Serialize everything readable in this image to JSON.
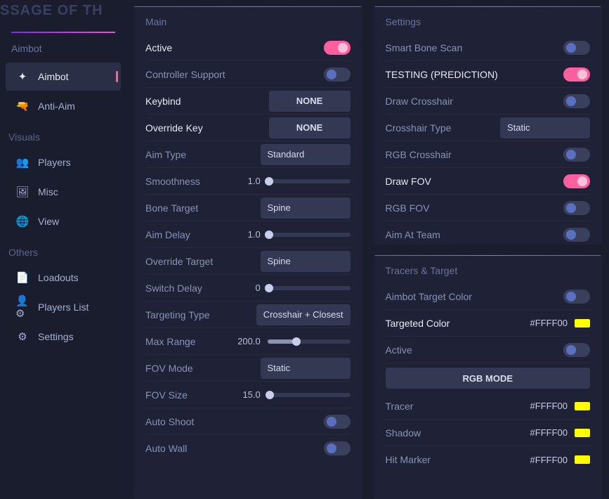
{
  "header": {
    "titleFragment": "SSAGE OF TH"
  },
  "sidebar": {
    "groups": [
      {
        "title": "Aimbot",
        "items": [
          {
            "id": "aimbot",
            "label": "Aimbot",
            "iconGlyph": "✦",
            "active": true
          },
          {
            "id": "anti-aim",
            "label": "Anti-Aim",
            "iconGlyph": "🔫",
            "active": false
          }
        ]
      },
      {
        "title": "Visuals",
        "items": [
          {
            "id": "players",
            "label": "Players",
            "iconGlyph": "👥",
            "active": false
          },
          {
            "id": "misc",
            "label": "Misc",
            "iconGlyph": "🖼",
            "active": false
          },
          {
            "id": "view",
            "label": "View",
            "iconGlyph": "🌐",
            "active": false
          }
        ]
      },
      {
        "title": "Others",
        "items": [
          {
            "id": "loadouts",
            "label": "Loadouts",
            "iconGlyph": "📄",
            "active": false
          },
          {
            "id": "players-list",
            "label": "Players List",
            "iconGlyph": "👤⚙",
            "active": false
          },
          {
            "id": "settings",
            "label": "Settings",
            "iconGlyph": "⚙",
            "active": false
          }
        ]
      }
    ]
  },
  "panels": {
    "main": {
      "title": "Main",
      "rows": [
        {
          "type": "toggle",
          "label": "Active",
          "bright": true,
          "on": true
        },
        {
          "type": "toggle",
          "label": "Controller Support",
          "on": false,
          "blue": true
        },
        {
          "type": "keybind",
          "label": "Keybind",
          "bright": true,
          "value": "NONE"
        },
        {
          "type": "keybind",
          "label": "Override Key",
          "bright": true,
          "value": "NONE"
        },
        {
          "type": "dropdown",
          "label": "Aim Type",
          "value": "Standard"
        },
        {
          "type": "slider",
          "label": "Smoothness",
          "value": "1.0",
          "pct": 2
        },
        {
          "type": "dropdown",
          "label": "Bone Target",
          "value": "Spine"
        },
        {
          "type": "slider",
          "label": "Aim Delay",
          "value": "1.0",
          "pct": 2
        },
        {
          "type": "dropdown",
          "label": "Override Target",
          "value": "Spine"
        },
        {
          "type": "slider",
          "label": "Switch Delay",
          "value": "0",
          "pct": 2
        },
        {
          "type": "dropdown",
          "label": "Targeting Type",
          "value": "Crosshair + Closest"
        },
        {
          "type": "slider",
          "label": "Max Range",
          "value": "200.0",
          "pct": 35
        },
        {
          "type": "dropdown",
          "label": "FOV Mode",
          "value": "Static"
        },
        {
          "type": "slider",
          "label": "FOV Size",
          "value": "15.0",
          "pct": 3
        },
        {
          "type": "toggle",
          "label": "Auto Shoot",
          "on": false,
          "blue": true
        },
        {
          "type": "toggle",
          "label": "Auto Wall",
          "on": false,
          "blue": true
        }
      ]
    },
    "settings": {
      "title": "Settings",
      "rows": [
        {
          "type": "toggle",
          "label": "Smart Bone Scan",
          "on": false,
          "blue": true
        },
        {
          "type": "toggle",
          "label": "TESTING (PREDICTION)",
          "bright": true,
          "on": true
        },
        {
          "type": "toggle",
          "label": "Draw Crosshair",
          "on": false,
          "blue": true
        },
        {
          "type": "dropdown",
          "label": "Crosshair Type",
          "value": "Static"
        },
        {
          "type": "toggle",
          "label": "RGB Crosshair",
          "on": false,
          "blue": true
        },
        {
          "type": "toggle",
          "label": "Draw FOV",
          "bright": true,
          "on": true
        },
        {
          "type": "toggle",
          "label": "RGB FOV",
          "on": false,
          "blue": true
        },
        {
          "type": "toggle",
          "label": "Aim At Team",
          "on": false,
          "blue": true
        }
      ]
    },
    "tracers": {
      "title": "Tracers & Target",
      "rows": [
        {
          "type": "toggle",
          "label": "Aimbot Target Color",
          "on": false,
          "blue": true
        },
        {
          "type": "color",
          "label": "Targeted Color",
          "bright": true,
          "hex": "#FFFF00"
        },
        {
          "type": "toggle",
          "label": "Active",
          "on": false,
          "blue": true
        },
        {
          "type": "button",
          "label": "RGB MODE"
        },
        {
          "type": "color",
          "label": "Tracer",
          "hex": "#FFFF00"
        },
        {
          "type": "color",
          "label": "Shadow",
          "hex": "#FFFF00"
        },
        {
          "type": "color",
          "label": "Hit Marker",
          "hex": "#FFFF00"
        }
      ]
    }
  },
  "colors": {
    "accent_pink": "#ff5f9e",
    "swatch_yellow": "#ffff00"
  }
}
